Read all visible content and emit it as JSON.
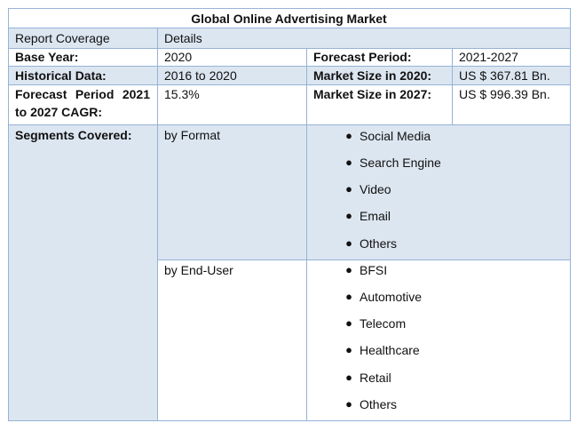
{
  "title": "Global Online Advertising Market",
  "header": {
    "label": "Report Coverage",
    "value": "Details"
  },
  "base_year": {
    "label": "Base Year:",
    "value": "2020"
  },
  "forecast_period": {
    "label": "Forecast Period:",
    "value": "2021-2027"
  },
  "historical_data": {
    "label": "Historical Data:",
    "value": "2016 to 2020"
  },
  "market_size_2020": {
    "label": "Market Size in 2020:",
    "value": "US $ 367.81 Bn."
  },
  "cagr": {
    "label": "Forecast Period 2021 to 2027 CAGR:",
    "value": "15.3%"
  },
  "market_size_2027": {
    "label": "Market Size in 2027:",
    "value": "US $ 996.39 Bn."
  },
  "segments": {
    "label": "Segments Covered:",
    "groups": [
      {
        "name": "by Format",
        "items": [
          "Social Media",
          "Search Engine",
          "Video",
          "Email",
          "Others"
        ]
      },
      {
        "name": "by End-User",
        "items": [
          "BFSI",
          "Automotive",
          "Telecom",
          "Healthcare",
          "Retail",
          "Others"
        ]
      }
    ]
  },
  "colors": {
    "row_shade": "#dce6f1",
    "border": "#95b3d7"
  }
}
